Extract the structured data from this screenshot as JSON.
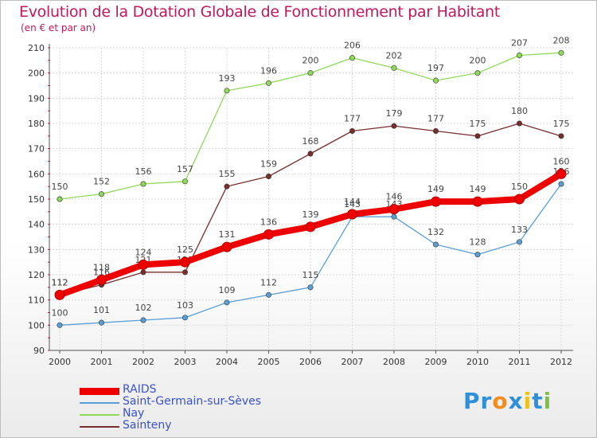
{
  "chart_data": {
    "type": "line",
    "title": "Evolution de la Dotation Globale de Fonctionnement par Habitant",
    "subtitle": "(en € et par an)",
    "x": [
      "2000",
      "2001",
      "2002",
      "2003",
      "2004",
      "2005",
      "2006",
      "2007",
      "2008",
      "2009",
      "2010",
      "2011",
      "2012"
    ],
    "ylim": [
      90,
      210
    ],
    "yticks": [
      90,
      100,
      110,
      120,
      130,
      140,
      150,
      160,
      170,
      180,
      190,
      200,
      210
    ],
    "grid": true,
    "series": [
      {
        "name": "Nay",
        "color": "#8fd95a",
        "values": [
          150,
          152,
          156,
          157,
          193,
          196,
          200,
          206,
          202,
          197,
          200,
          207,
          208
        ]
      },
      {
        "name": "Sainteny",
        "color": "#7a2d2d",
        "values": [
          112,
          116,
          121,
          121,
          155,
          159,
          168,
          177,
          179,
          177,
          175,
          180,
          175
        ]
      },
      {
        "name": "Saint-Germain-sur-Sèves",
        "color": "#5a9ed6",
        "values": [
          100,
          101,
          102,
          103,
          109,
          112,
          115,
          143,
          143,
          132,
          128,
          133,
          156
        ]
      },
      {
        "name": "RAIDS",
        "color": "#ee0000",
        "values": [
          112,
          118,
          124,
          125,
          131,
          136,
          139,
          144,
          146,
          149,
          149,
          150,
          160
        ]
      }
    ],
    "legend_order": [
      "RAIDS",
      "Saint-Germain-sur-Sèves",
      "Nay",
      "Sainteny"
    ]
  },
  "logo": {
    "text": "Proxiti",
    "letters": [
      "P",
      "r",
      "o",
      "x",
      "i",
      "t",
      "i"
    ],
    "colors": [
      "#2f8fd8",
      "#2f8fd8",
      "#f28c1c",
      "#2f8fd8",
      "#f0c020",
      "#2f8fd8",
      "#7cc242"
    ]
  }
}
